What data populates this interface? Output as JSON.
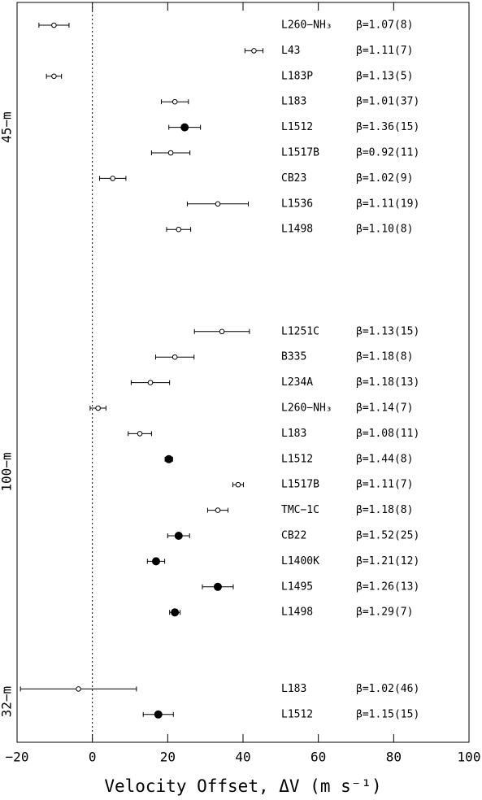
{
  "chart_data": {
    "type": "errorbar",
    "x_label": "Velocity Offset, ΔV  (m s⁻¹)",
    "xlim": [
      -20,
      100
    ],
    "xticks": [
      {
        "value": -20,
        "label": "−20"
      },
      0,
      20,
      40,
      60,
      80,
      100
    ],
    "vline": 0,
    "color": "#000000",
    "groups": [
      {
        "name": "45−m",
        "sources": [
          "L260−NH₃",
          "L43",
          "L183P",
          "L183",
          "L1512",
          "L1517B",
          "CB23",
          "L1536",
          "L1498"
        ],
        "values": [
          -10.2,
          42.9,
          -10.2,
          21.9,
          24.5,
          20.8,
          5.4,
          33.3,
          22.9
        ],
        "errors": [
          4.0,
          2.4,
          2.0,
          3.6,
          4.2,
          5.1,
          3.5,
          8.1,
          3.2
        ],
        "filled": [
          false,
          false,
          false,
          false,
          true,
          false,
          false,
          false,
          false
        ],
        "beta_labels": [
          "β=1.07(8)",
          "β=1.11(7)",
          "β=1.13(5)",
          "β=1.01(37)",
          "β=1.36(15)",
          "β=0.92(11)",
          "β=1.02(9)",
          "β=1.11(19)",
          "β=1.10(8)"
        ]
      },
      {
        "name": "100−m",
        "sources": [
          "L1251C",
          "B335",
          "L234A",
          "L260−NH₃",
          "L183",
          "L1512",
          "L1517B",
          "TMC−1C",
          "CB22",
          "L1400K",
          "L1495",
          "L1498"
        ],
        "values": [
          34.4,
          21.9,
          15.4,
          1.5,
          12.6,
          20.3,
          38.7,
          33.3,
          22.9,
          16.9,
          33.3,
          21.9
        ],
        "errors": [
          7.3,
          5.1,
          5.1,
          2.1,
          3.1,
          1.0,
          1.4,
          2.7,
          2.9,
          2.3,
          4.1,
          1.4
        ],
        "filled": [
          false,
          false,
          false,
          false,
          false,
          true,
          false,
          false,
          true,
          true,
          true,
          true
        ],
        "beta_labels": [
          "β=1.13(15)",
          "β=1.18(8)",
          "β=1.18(13)",
          "β=1.14(7)",
          "β=1.08(11)",
          "β=1.44(8)",
          "β=1.11(7)",
          "β=1.18(8)",
          "β=1.52(25)",
          "β=1.21(12)",
          "β=1.26(13)",
          "β=1.29(7)"
        ]
      },
      {
        "name": "32−m",
        "sources": [
          "L183",
          "L1512"
        ],
        "values": [
          -3.7,
          17.5
        ],
        "errors": [
          15.4,
          4.0
        ],
        "filled": [
          false,
          true
        ],
        "beta_labels": [
          "β=1.02(46)",
          "β=1.15(15)"
        ]
      }
    ]
  }
}
